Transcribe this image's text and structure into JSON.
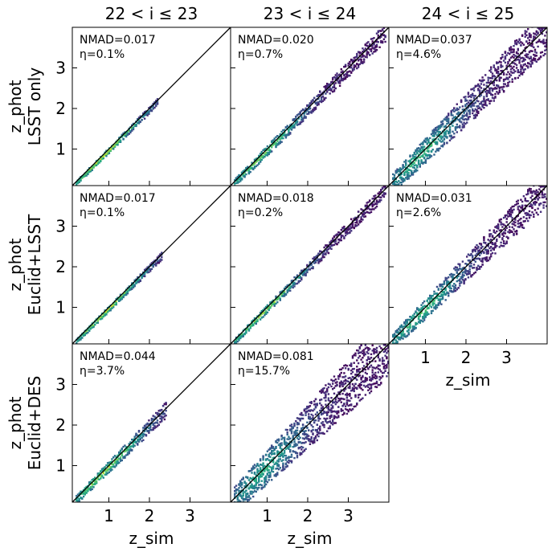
{
  "chart_data": {
    "type": "heatmap",
    "figure_title": "",
    "column_titles": [
      "22 < i ≤ 23",
      "23 < i ≤ 24",
      "24 < i ≤ 25"
    ],
    "row_labels": [
      "LSST only",
      "Euclid+LSST",
      "Euclid+DES"
    ],
    "xlabel": "z_sim",
    "ylabel": "z_phot",
    "xlim": [
      0.1,
      4.0
    ],
    "ylim": [
      0.1,
      4.0
    ],
    "xticks": [
      1,
      2,
      3
    ],
    "yticks": [
      1,
      2,
      3
    ],
    "colormap": "viridis",
    "diagonal": "one-to-one line",
    "panels": [
      {
        "row": 0,
        "col": 0,
        "nmad_label": "NMAD=0.017",
        "eta_label": "η=0.1%",
        "nmad": 0.017,
        "outlier_fraction_pct": 0.1,
        "present": true
      },
      {
        "row": 0,
        "col": 1,
        "nmad_label": "NMAD=0.020",
        "eta_label": "η=0.7%",
        "nmad": 0.02,
        "outlier_fraction_pct": 0.7,
        "present": true
      },
      {
        "row": 0,
        "col": 2,
        "nmad_label": "NMAD=0.037",
        "eta_label": "η=4.6%",
        "nmad": 0.037,
        "outlier_fraction_pct": 4.6,
        "present": true
      },
      {
        "row": 1,
        "col": 0,
        "nmad_label": "NMAD=0.017",
        "eta_label": "η=0.1%",
        "nmad": 0.017,
        "outlier_fraction_pct": 0.1,
        "present": true
      },
      {
        "row": 1,
        "col": 1,
        "nmad_label": "NMAD=0.018",
        "eta_label": "η=0.2%",
        "nmad": 0.018,
        "outlier_fraction_pct": 0.2,
        "present": true
      },
      {
        "row": 1,
        "col": 2,
        "nmad_label": "NMAD=0.031",
        "eta_label": "η=2.6%",
        "nmad": 0.031,
        "outlier_fraction_pct": 2.6,
        "present": true
      },
      {
        "row": 2,
        "col": 0,
        "nmad_label": "NMAD=0.044",
        "eta_label": "η=3.7%",
        "nmad": 0.044,
        "outlier_fraction_pct": 3.7,
        "present": true
      },
      {
        "row": 2,
        "col": 1,
        "nmad_label": "NMAD=0.081",
        "eta_label": "η=15.7%",
        "nmad": 0.081,
        "outlier_fraction_pct": 15.7,
        "present": true
      },
      {
        "row": 2,
        "col": 2,
        "present": false
      }
    ],
    "density_ridges": [
      {
        "row": 0,
        "col": 0,
        "z_max": 2.2,
        "spread": 0.05,
        "intensity": 0.9
      },
      {
        "row": 0,
        "col": 1,
        "z_max": 3.9,
        "spread": 0.09,
        "intensity": 0.75
      },
      {
        "row": 0,
        "col": 2,
        "z_max": 4.0,
        "spread": 0.22,
        "intensity": 0.6
      },
      {
        "row": 1,
        "col": 0,
        "z_max": 2.3,
        "spread": 0.05,
        "intensity": 0.9
      },
      {
        "row": 1,
        "col": 1,
        "z_max": 3.9,
        "spread": 0.07,
        "intensity": 0.8
      },
      {
        "row": 1,
        "col": 2,
        "z_max": 4.0,
        "spread": 0.18,
        "intensity": 0.65
      },
      {
        "row": 2,
        "col": 0,
        "z_max": 2.4,
        "spread": 0.1,
        "intensity": 0.8
      },
      {
        "row": 2,
        "col": 1,
        "z_max": 4.0,
        "spread": 0.3,
        "intensity": 0.55
      }
    ]
  }
}
